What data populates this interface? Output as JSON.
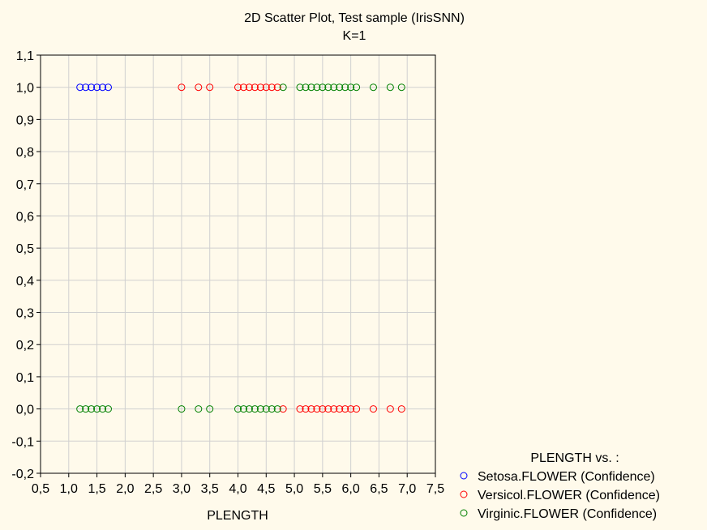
{
  "chart_data": {
    "type": "scatter",
    "title": "2D Scatter Plot, Test sample (IrisSNN)",
    "subtitle": "K=1",
    "xlabel": "PLENGTH",
    "ylabel": "",
    "xlim": [
      0.5,
      7.5
    ],
    "ylim": [
      -0.2,
      1.1
    ],
    "x_ticks": [
      0.5,
      1.0,
      1.5,
      2.0,
      2.5,
      3.0,
      3.5,
      4.0,
      4.5,
      5.0,
      5.5,
      6.0,
      6.5,
      7.0,
      7.5
    ],
    "x_tick_labels": [
      "0,5",
      "1,0",
      "1,5",
      "2,0",
      "2,5",
      "3,0",
      "3,5",
      "4,0",
      "4,5",
      "5,0",
      "5,5",
      "6,0",
      "6,5",
      "7,0",
      "7,5"
    ],
    "y_ticks": [
      -0.2,
      -0.1,
      0.0,
      0.1,
      0.2,
      0.3,
      0.4,
      0.5,
      0.6,
      0.7,
      0.8,
      0.9,
      1.0,
      1.1
    ],
    "y_tick_labels": [
      "-0,2",
      "-0,1",
      "0,0",
      "0,1",
      "0,2",
      "0,3",
      "0,4",
      "0,5",
      "0,6",
      "0,7",
      "0,8",
      "0,9",
      "1,0",
      "1,1"
    ],
    "grid": true,
    "legend_title": "PLENGTH  vs. :",
    "legend_position": "bottom-right",
    "series": [
      {
        "name": "Setosa.FLOWER (Confidence)",
        "color": "#0000ff",
        "points": [
          [
            1.2,
            1.0
          ],
          [
            1.3,
            1.0
          ],
          [
            1.4,
            1.0
          ],
          [
            1.5,
            1.0
          ],
          [
            1.6,
            1.0
          ],
          [
            1.7,
            1.0
          ]
        ]
      },
      {
        "name": "Versicol.FLOWER (Confidence)",
        "color": "#ff0000",
        "points": [
          [
            3.0,
            1.0
          ],
          [
            3.3,
            1.0
          ],
          [
            3.5,
            1.0
          ],
          [
            4.0,
            1.0
          ],
          [
            4.1,
            1.0
          ],
          [
            4.2,
            1.0
          ],
          [
            4.3,
            1.0
          ],
          [
            4.4,
            1.0
          ],
          [
            4.5,
            1.0
          ],
          [
            4.6,
            1.0
          ],
          [
            4.7,
            1.0
          ],
          [
            4.8,
            0.0
          ],
          [
            5.1,
            0.0
          ],
          [
            5.2,
            0.0
          ],
          [
            5.3,
            0.0
          ],
          [
            5.4,
            0.0
          ],
          [
            5.5,
            0.0
          ],
          [
            5.6,
            0.0
          ],
          [
            5.7,
            0.0
          ],
          [
            5.8,
            0.0
          ],
          [
            5.9,
            0.0
          ],
          [
            6.0,
            0.0
          ],
          [
            6.1,
            0.0
          ],
          [
            6.4,
            0.0
          ],
          [
            6.7,
            0.0
          ],
          [
            6.9,
            0.0
          ]
        ]
      },
      {
        "name": "Virginic.FLOWER (Confidence)",
        "color": "#008000",
        "points": [
          [
            1.2,
            0.0
          ],
          [
            1.3,
            0.0
          ],
          [
            1.4,
            0.0
          ],
          [
            1.5,
            0.0
          ],
          [
            1.6,
            0.0
          ],
          [
            1.7,
            0.0
          ],
          [
            3.0,
            0.0
          ],
          [
            3.3,
            0.0
          ],
          [
            3.5,
            0.0
          ],
          [
            4.0,
            0.0
          ],
          [
            4.1,
            0.0
          ],
          [
            4.2,
            0.0
          ],
          [
            4.3,
            0.0
          ],
          [
            4.4,
            0.0
          ],
          [
            4.5,
            0.0
          ],
          [
            4.6,
            0.0
          ],
          [
            4.7,
            0.0
          ],
          [
            4.8,
            1.0
          ],
          [
            5.1,
            1.0
          ],
          [
            5.2,
            1.0
          ],
          [
            5.3,
            1.0
          ],
          [
            5.4,
            1.0
          ],
          [
            5.5,
            1.0
          ],
          [
            5.6,
            1.0
          ],
          [
            5.7,
            1.0
          ],
          [
            5.8,
            1.0
          ],
          [
            5.9,
            1.0
          ],
          [
            6.0,
            1.0
          ],
          [
            6.1,
            1.0
          ],
          [
            6.4,
            1.0
          ],
          [
            6.7,
            1.0
          ],
          [
            6.9,
            1.0
          ]
        ]
      }
    ]
  }
}
